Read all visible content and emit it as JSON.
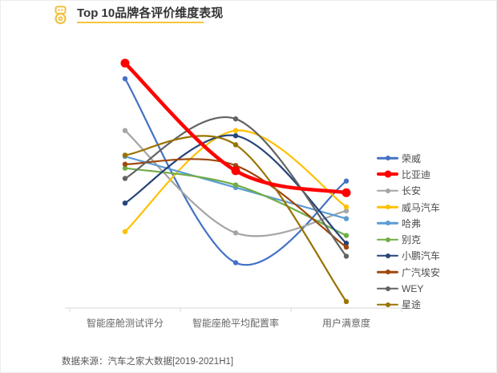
{
  "header": {
    "title": "Top 10品牌各评价维度表现",
    "logo_icon": "medal-icon",
    "accent_color": "#F5C63C"
  },
  "footer": {
    "source": "数据来源：汽车之家大数据[2019-2021H1]"
  },
  "chart_data": {
    "type": "line",
    "title": "Top 10品牌各评价维度表现",
    "categories": [
      "智能座舱测试评分",
      "智能座舱平均配置率",
      "用户满意度"
    ],
    "xlabel": "",
    "ylabel": "",
    "ylim": [
      0,
      100
    ],
    "grid": false,
    "smooth": true,
    "legend_position": "right",
    "axis_color": "#d9d9d9",
    "series": [
      {
        "name": "荣威",
        "color": "#4472C4",
        "values": [
          88.5,
          17.5,
          49.0
        ],
        "emphasis": false
      },
      {
        "name": "比亚迪",
        "color": "#FF0000",
        "values": [
          94.5,
          53.0,
          44.5
        ],
        "emphasis": true
      },
      {
        "name": "长安",
        "color": "#A5A5A5",
        "values": [
          68.5,
          29.0,
          37.5
        ],
        "emphasis": false
      },
      {
        "name": "威马汽车",
        "color": "#FFC000",
        "values": [
          29.5,
          68.5,
          39.0
        ],
        "emphasis": false
      },
      {
        "name": "哈弗",
        "color": "#5B9BD5",
        "values": [
          58.5,
          46.5,
          34.5
        ],
        "emphasis": false
      },
      {
        "name": "别克",
        "color": "#70AD47",
        "values": [
          54.0,
          47.5,
          28.0
        ],
        "emphasis": false
      },
      {
        "name": "小鹏汽车",
        "color": "#264478",
        "values": [
          40.5,
          66.5,
          25.0
        ],
        "emphasis": false
      },
      {
        "name": "广汽埃安",
        "color": "#9E480E",
        "values": [
          55.5,
          55.0,
          23.5
        ],
        "emphasis": false
      },
      {
        "name": "WEY",
        "color": "#636363",
        "values": [
          50.0,
          73.0,
          20.0
        ],
        "emphasis": false
      },
      {
        "name": "星途",
        "color": "#997300",
        "values": [
          59.0,
          63.0,
          2.5
        ],
        "emphasis": false
      }
    ]
  }
}
